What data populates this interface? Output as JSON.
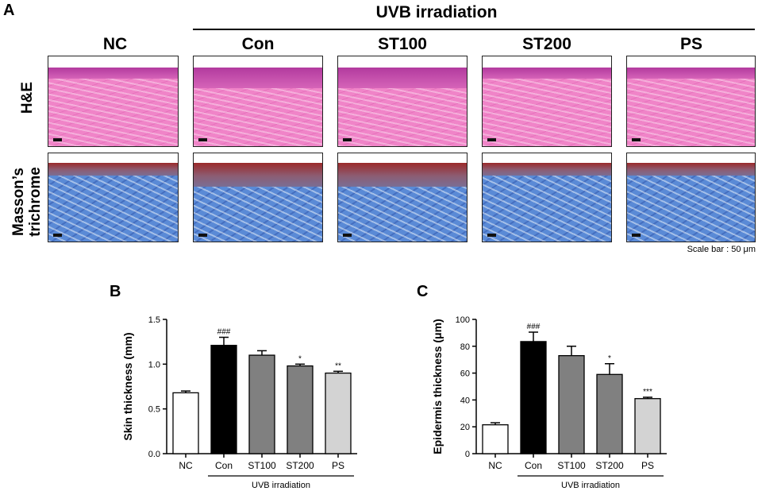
{
  "panel_a": {
    "letter": "A",
    "uvb_header": "UVB irradiation",
    "group_headers": [
      "NC",
      "Con",
      "ST100",
      "ST200",
      "PS"
    ],
    "row_labels": [
      "H&E",
      "Masson’s trichrome"
    ],
    "scale_bar_text": "Scale bar : 50 μm",
    "colors": {
      "he_stain": "#f084c8",
      "masson_stain": "#5a8ad6"
    }
  },
  "chart_data": [
    {
      "panel_letter": "B",
      "type": "bar",
      "categories": [
        "NC",
        "Con",
        "ST100",
        "ST200",
        "PS"
      ],
      "values": [
        0.68,
        1.21,
        1.1,
        0.98,
        0.9
      ],
      "errors": [
        0.02,
        0.09,
        0.05,
        0.02,
        0.02
      ],
      "significance": [
        "",
        "###",
        "",
        "*",
        "**"
      ],
      "bar_colors": [
        "#ffffff",
        "#000000",
        "#808080",
        "#808080",
        "#d3d3d3"
      ],
      "ylabel": "Skin thickness (mm)",
      "ylim": [
        0,
        1.5
      ],
      "yticks": [
        "0.0",
        "0.5",
        "1.0",
        "1.5"
      ],
      "group_label": "UVB irradiation"
    },
    {
      "panel_letter": "C",
      "type": "bar",
      "categories": [
        "NC",
        "Con",
        "ST100",
        "ST200",
        "PS"
      ],
      "values": [
        21.5,
        83.5,
        73,
        59,
        41
      ],
      "errors": [
        1.5,
        7,
        7,
        8,
        1
      ],
      "significance": [
        "",
        "###",
        "",
        "*",
        "***"
      ],
      "bar_colors": [
        "#ffffff",
        "#000000",
        "#808080",
        "#808080",
        "#d3d3d3"
      ],
      "ylabel": "Epidermis thickness (μm)",
      "ylim": [
        0,
        100
      ],
      "yticks": [
        "0",
        "20",
        "40",
        "60",
        "80",
        "100"
      ],
      "group_label": "UVB irradiation"
    }
  ]
}
